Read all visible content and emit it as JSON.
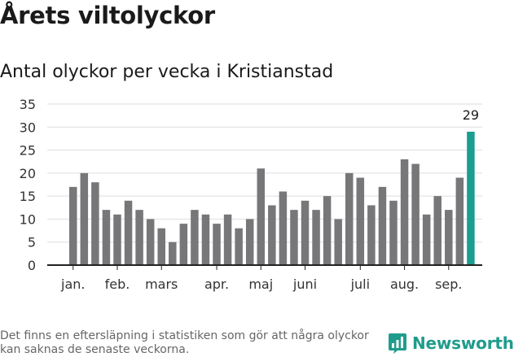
{
  "title": "Årets viltolyckor",
  "subtitle": "Antal olyckor per vecka i Kristianstad",
  "note": "Det finns en eftersläpning i statistiken som gör att några olyckor kan saknas de senaste veckorna.",
  "logo": {
    "text": "Newsworthy",
    "icon": "bar-chart-icon",
    "color": "#1f9c8c"
  },
  "colors": {
    "bar": "#777679",
    "highlight": "#1a9e91",
    "grid": "#dddddd",
    "axis": "#222222"
  },
  "chart_data": {
    "type": "bar",
    "title": "",
    "xlabel": "",
    "ylabel": "",
    "ylim": [
      0,
      35
    ],
    "yticks": [
      0,
      5,
      10,
      15,
      20,
      25,
      30,
      35
    ],
    "grid": true,
    "values": [
      17,
      20,
      18,
      12,
      11,
      14,
      12,
      10,
      8,
      5,
      9,
      12,
      11,
      9,
      11,
      8,
      10,
      21,
      13,
      16,
      12,
      14,
      12,
      15,
      10,
      20,
      19,
      13,
      17,
      14,
      23,
      22,
      11,
      15,
      12,
      19,
      29
    ],
    "highlight_index": 36,
    "data_labels": [
      {
        "index": 36,
        "text": "29"
      }
    ],
    "month_labels": [
      {
        "index": 0,
        "label": "jan."
      },
      {
        "index": 4,
        "label": "feb."
      },
      {
        "index": 8,
        "label": "mars"
      },
      {
        "index": 13,
        "label": "apr."
      },
      {
        "index": 17,
        "label": "maj"
      },
      {
        "index": 21,
        "label": "juni"
      },
      {
        "index": 26,
        "label": "juli"
      },
      {
        "index": 30,
        "label": "aug."
      },
      {
        "index": 34,
        "label": "sep."
      }
    ]
  }
}
